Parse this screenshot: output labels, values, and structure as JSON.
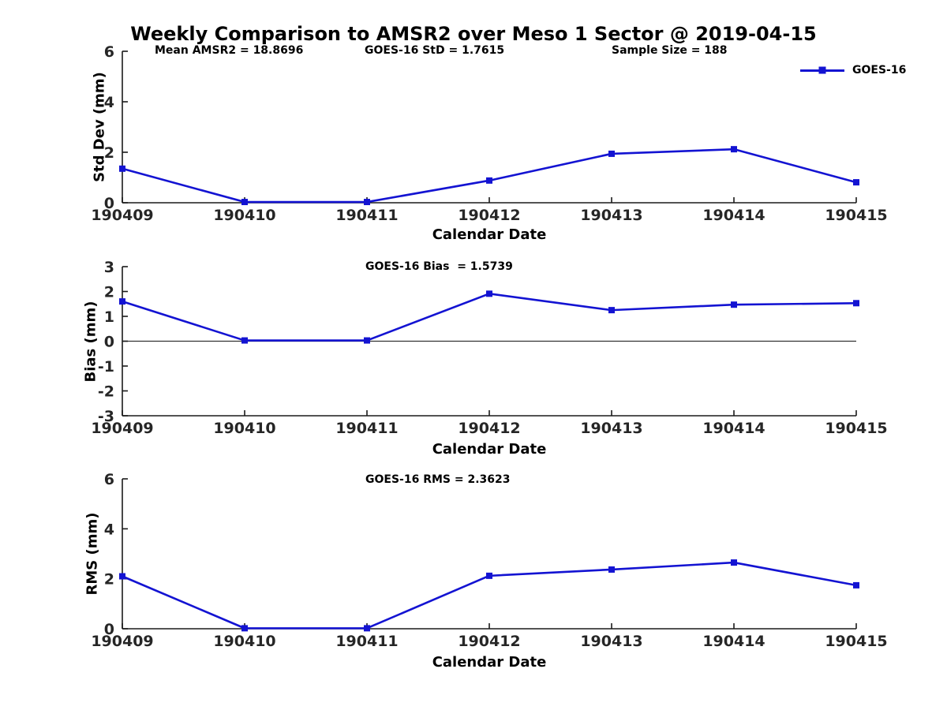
{
  "title": "Weekly Comparison to AMSR2 over Meso 1 Sector @ 2019-04-15",
  "legend": {
    "label": "GOES-16"
  },
  "colors": {
    "line": "#1313d2",
    "axis": "#1a1a1a",
    "tick_text": "#262626",
    "zero_line": "#333333"
  },
  "chart_data": [
    {
      "type": "line",
      "xlabel": "Calendar Date",
      "ylabel": "Std Dev (mm)",
      "categories": [
        "190409",
        "190410",
        "190411",
        "190412",
        "190413",
        "190414",
        "190415"
      ],
      "series": [
        {
          "name": "GOES-16",
          "values": [
            1.35,
            0.03,
            0.03,
            0.88,
            1.94,
            2.12,
            0.81
          ]
        }
      ],
      "ylim": [
        0,
        6
      ],
      "yticks": [
        0,
        2,
        4,
        6
      ],
      "grid": false,
      "zero_line": false,
      "legend_position": "top-right",
      "annotations": [
        "Mean AMSR2 = 18.8696",
        "GOES-16 StD = 1.7615",
        "Sample Size = 188"
      ]
    },
    {
      "type": "line",
      "xlabel": "Calendar Date",
      "ylabel": "Bias (mm)",
      "categories": [
        "190409",
        "190410",
        "190411",
        "190412",
        "190413",
        "190414",
        "190415"
      ],
      "series": [
        {
          "name": "GOES-16",
          "values": [
            1.6,
            0.03,
            0.03,
            1.91,
            1.25,
            1.47,
            1.53
          ]
        }
      ],
      "ylim": [
        -3,
        3
      ],
      "yticks": [
        -3,
        -2,
        -1,
        0,
        1,
        2,
        3
      ],
      "grid": false,
      "zero_line": true,
      "legend_position": "none",
      "annotations": [
        "GOES-16 Bias  = 1.5739"
      ]
    },
    {
      "type": "line",
      "xlabel": "Calendar Date",
      "ylabel": "RMS (mm)",
      "categories": [
        "190409",
        "190410",
        "190411",
        "190412",
        "190413",
        "190414",
        "190415"
      ],
      "series": [
        {
          "name": "GOES-16",
          "values": [
            2.1,
            0.02,
            0.02,
            2.12,
            2.37,
            2.65,
            1.74
          ]
        }
      ],
      "ylim": [
        0,
        6
      ],
      "yticks": [
        0,
        2,
        4,
        6
      ],
      "grid": false,
      "zero_line": false,
      "legend_position": "none",
      "annotations": [
        "GOES-16 RMS = 2.3623"
      ]
    }
  ]
}
